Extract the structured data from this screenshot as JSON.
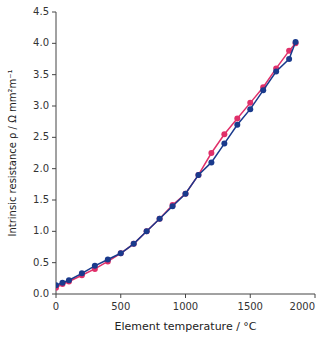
{
  "chart_data": {
    "type": "line",
    "xlabel": "Element temperature / °C",
    "ylabel": "Intrinsic resistance ρ / Ω mm²m⁻¹",
    "x": [
      0,
      50,
      100,
      200,
      300,
      400,
      500,
      600,
      700,
      800,
      900,
      1000,
      1100,
      1200,
      1300,
      1400,
      1500,
      1600,
      1700,
      1800,
      1850
    ],
    "series": [
      {
        "color": "#e0306a",
        "values": [
          0.1,
          0.16,
          0.2,
          0.3,
          0.4,
          0.52,
          0.65,
          0.8,
          1.0,
          1.2,
          1.42,
          1.6,
          1.9,
          2.25,
          2.55,
          2.8,
          3.05,
          3.3,
          3.6,
          3.88,
          4.0
        ]
      },
      {
        "color": "#1a3a8c",
        "values": [
          0.14,
          0.18,
          0.22,
          0.33,
          0.45,
          0.55,
          0.65,
          0.8,
          1.0,
          1.2,
          1.4,
          1.6,
          1.9,
          2.1,
          2.4,
          2.7,
          2.95,
          3.25,
          3.55,
          3.75,
          4.02
        ]
      }
    ],
    "xlim": [
      0,
      2000
    ],
    "ylim": [
      0.0,
      4.5
    ],
    "xticks": [
      0,
      500,
      1000,
      1500,
      2000
    ],
    "yticks": [
      {
        "value": 0.0,
        "label": "0.0"
      },
      0.5,
      {
        "value": 1.0,
        "label": "1.0"
      },
      1.5,
      {
        "value": 2.0,
        "label": "2.0"
      },
      2.5,
      {
        "value": 3.0,
        "label": "3.0"
      },
      3.5,
      {
        "value": 4.0,
        "label": "4.0"
      },
      4.5
    ],
    "grid": false,
    "marker": "circle"
  }
}
